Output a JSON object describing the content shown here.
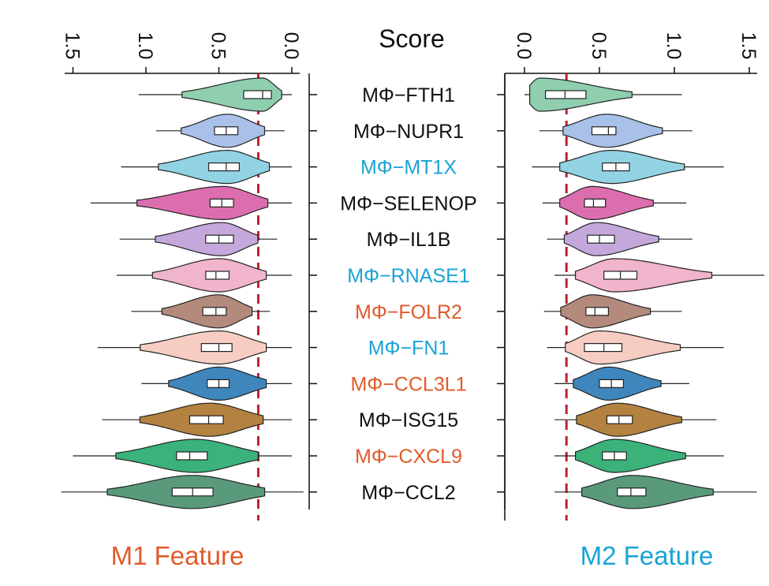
{
  "chart_data": {
    "type": "violin",
    "title": "Score",
    "categories": [
      "MΦ−FTH1",
      "MΦ−NUPR1",
      "MΦ−MT1X",
      "MΦ−SELENOP",
      "MΦ−IL1B",
      "MΦ−RNASE1",
      "MΦ−FOLR2",
      "MΦ−FN1",
      "MΦ−CCL3L1",
      "MΦ−ISG15",
      "MΦ−CXCL9",
      "MΦ−CCL2"
    ],
    "category_colors": [
      "#111111",
      "#111111",
      "#1ba3d6",
      "#111111",
      "#111111",
      "#1ba3d6",
      "#e05a2b",
      "#1ba3d6",
      "#e05a2b",
      "#111111",
      "#e05a2b",
      "#111111"
    ],
    "violin_colors": [
      "#8fcfb0",
      "#a9c1e8",
      "#92d3e3",
      "#dc6eb0",
      "#c4a8dc",
      "#f0b4cc",
      "#b48a7c",
      "#f7cdc3",
      "#3f86bd",
      "#b48240",
      "#3bb27a",
      "#5a9a7c"
    ],
    "ticks": [
      "0.0",
      "0.5",
      "1.0",
      "1.5"
    ],
    "xlim": [
      0,
      1.5
    ],
    "panels": [
      {
        "name": "M1 Feature",
        "color": "#e05a2b",
        "direction": "reversed",
        "threshold": 0.23,
        "stats": [
          {
            "min": 0.0,
            "q1": 0.14,
            "median": 0.2,
            "q3": 0.33,
            "max": 1.05,
            "mode": 0.2
          },
          {
            "min": 0.05,
            "q1": 0.37,
            "median": 0.45,
            "q3": 0.53,
            "max": 0.93,
            "mode": 0.44
          },
          {
            "min": 0.0,
            "q1": 0.36,
            "median": 0.45,
            "q3": 0.57,
            "max": 1.17,
            "mode": 0.44
          },
          {
            "min": 0.0,
            "q1": 0.4,
            "median": 0.48,
            "q3": 0.56,
            "max": 1.38,
            "mode": 0.47
          },
          {
            "min": 0.1,
            "q1": 0.4,
            "median": 0.5,
            "q3": 0.59,
            "max": 1.18,
            "mode": 0.48
          },
          {
            "min": 0.0,
            "q1": 0.43,
            "median": 0.52,
            "q3": 0.59,
            "max": 1.2,
            "mode": 0.5
          },
          {
            "min": 0.15,
            "q1": 0.45,
            "median": 0.52,
            "q3": 0.61,
            "max": 1.1,
            "mode": 0.5
          },
          {
            "min": 0.0,
            "q1": 0.41,
            "median": 0.5,
            "q3": 0.62,
            "max": 1.33,
            "mode": 0.5
          },
          {
            "min": 0.0,
            "q1": 0.43,
            "median": 0.5,
            "q3": 0.58,
            "max": 1.03,
            "mode": 0.5
          },
          {
            "min": 0.0,
            "q1": 0.47,
            "median": 0.57,
            "q3": 0.7,
            "max": 1.3,
            "mode": 0.56
          },
          {
            "min": 0.0,
            "q1": 0.58,
            "median": 0.7,
            "q3": 0.79,
            "max": 1.5,
            "mode": 0.66
          },
          {
            "min": -0.08,
            "q1": 0.54,
            "median": 0.68,
            "q3": 0.82,
            "max": 1.58,
            "mode": 0.68
          }
        ]
      },
      {
        "name": "M2 Feature",
        "color": "#1ba3d6",
        "direction": "normal",
        "threshold": 0.28,
        "stats": [
          {
            "min": 0.0,
            "q1": 0.14,
            "median": 0.27,
            "q3": 0.41,
            "max": 1.05,
            "mode": 0.1
          },
          {
            "min": 0.1,
            "q1": 0.45,
            "median": 0.56,
            "q3": 0.61,
            "max": 1.12,
            "mode": 0.55
          },
          {
            "min": 0.05,
            "q1": 0.52,
            "median": 0.61,
            "q3": 0.7,
            "max": 1.33,
            "mode": 0.58
          },
          {
            "min": 0.12,
            "q1": 0.4,
            "median": 0.46,
            "q3": 0.54,
            "max": 1.08,
            "mode": 0.45
          },
          {
            "min": 0.15,
            "q1": 0.42,
            "median": 0.5,
            "q3": 0.6,
            "max": 1.12,
            "mode": 0.48
          },
          {
            "min": 0.2,
            "q1": 0.53,
            "median": 0.64,
            "q3": 0.75,
            "max": 1.6,
            "mode": 0.6
          },
          {
            "min": 0.13,
            "q1": 0.41,
            "median": 0.47,
            "q3": 0.56,
            "max": 1.05,
            "mode": 0.45
          },
          {
            "min": 0.15,
            "q1": 0.4,
            "median": 0.53,
            "q3": 0.65,
            "max": 1.33,
            "mode": 0.5
          },
          {
            "min": 0.2,
            "q1": 0.5,
            "median": 0.58,
            "q3": 0.66,
            "max": 1.1,
            "mode": 0.56
          },
          {
            "min": 0.2,
            "q1": 0.55,
            "median": 0.63,
            "q3": 0.72,
            "max": 1.28,
            "mode": 0.62
          },
          {
            "min": 0.2,
            "q1": 0.52,
            "median": 0.6,
            "q3": 0.68,
            "max": 1.33,
            "mode": 0.6
          },
          {
            "min": 0.2,
            "q1": 0.62,
            "median": 0.71,
            "q3": 0.81,
            "max": 1.55,
            "mode": 0.72
          }
        ]
      }
    ]
  }
}
